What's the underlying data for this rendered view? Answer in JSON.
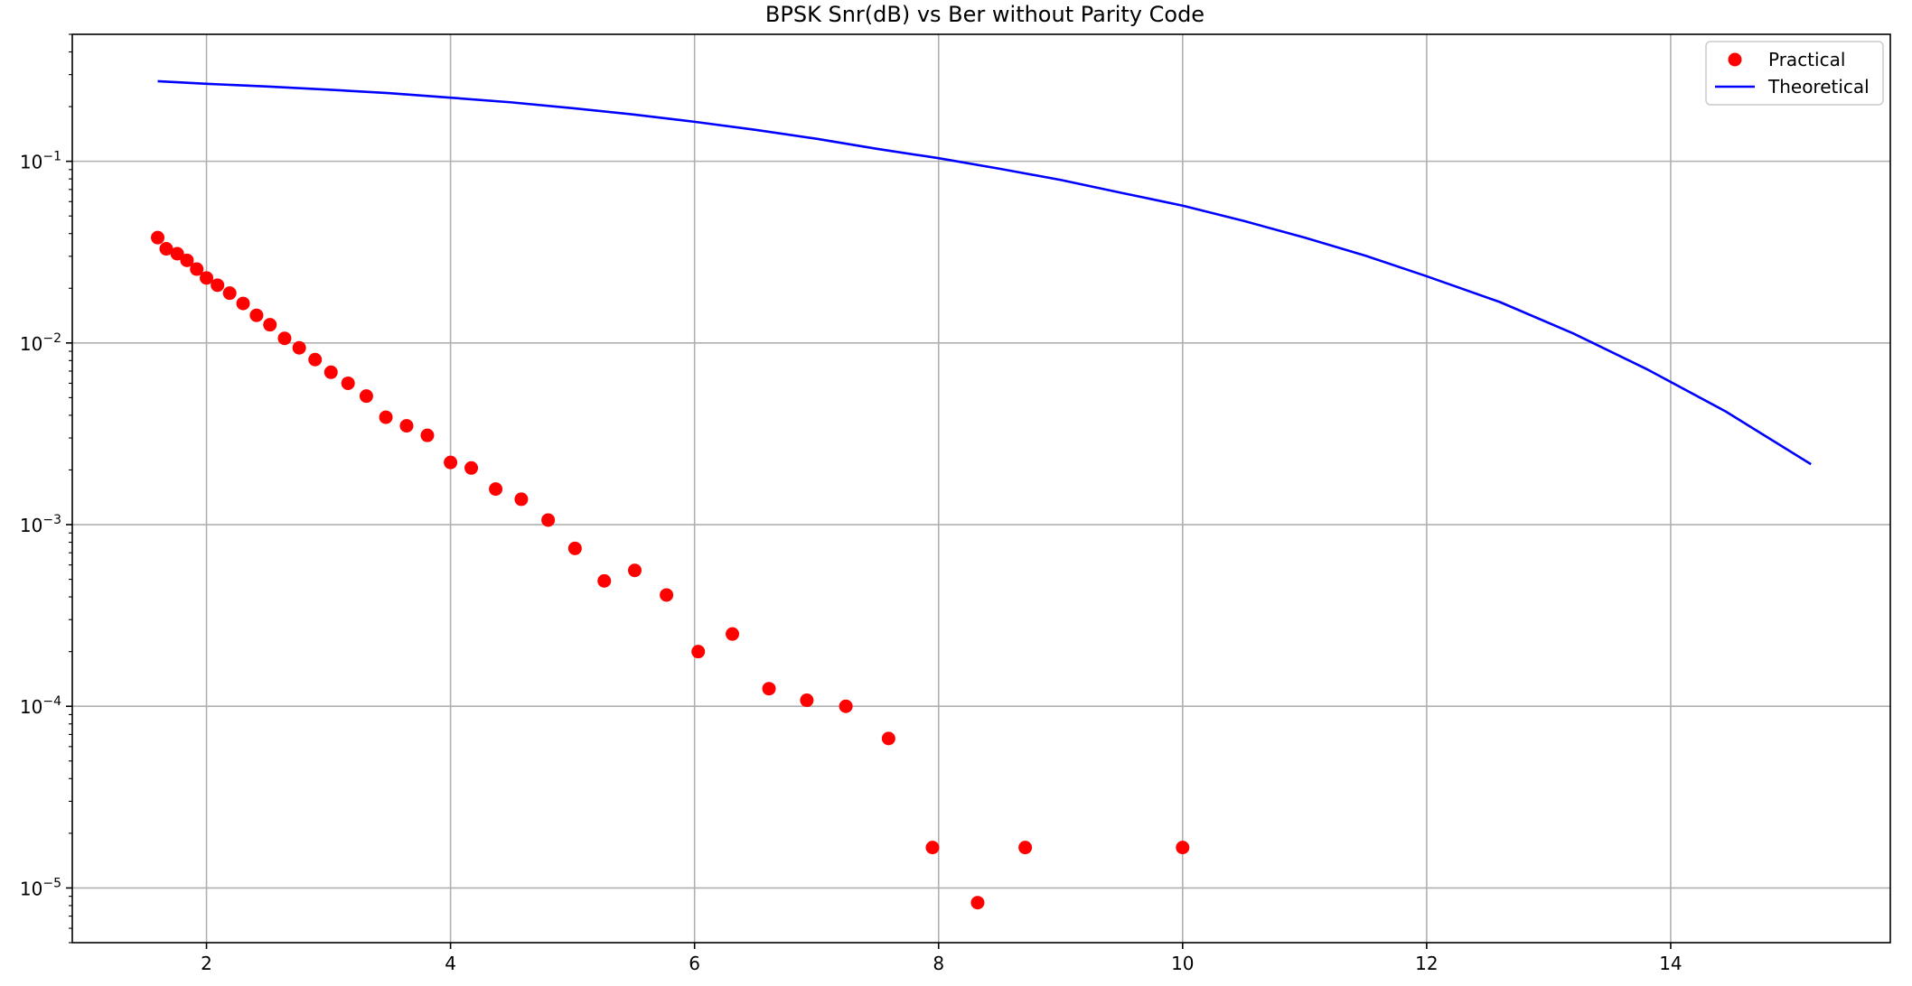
{
  "chart_data": {
    "type": "scatter",
    "title": "BPSK Snr(dB) vs Ber without Parity Code",
    "xlabel": "",
    "ylabel": "",
    "xlim": [
      0.9,
      15.8
    ],
    "ylim": [
      5e-06,
      0.5
    ],
    "yscale": "log",
    "grid": true,
    "legend_position": "top-right",
    "x_ticks": [
      "2",
      "4",
      "6",
      "8",
      "10",
      "12",
      "14"
    ],
    "y_ticks": [
      {
        "value": 1e-05,
        "base": "10",
        "exp": "−5"
      },
      {
        "value": 0.0001,
        "base": "10",
        "exp": "−4"
      },
      {
        "value": 0.001,
        "base": "10",
        "exp": "−3"
      },
      {
        "value": 0.01,
        "base": "10",
        "exp": "−2"
      },
      {
        "value": 0.1,
        "base": "10",
        "exp": "−1"
      }
    ],
    "series": [
      {
        "name": "Practical",
        "kind": "scatter",
        "color": "#ff0000",
        "x": [
          1.6,
          1.67,
          1.76,
          1.84,
          1.92,
          2.0,
          2.09,
          2.19,
          2.3,
          2.41,
          2.52,
          2.64,
          2.76,
          2.89,
          3.02,
          3.16,
          3.31,
          3.47,
          3.64,
          3.81,
          4.0,
          4.17,
          4.37,
          4.58,
          4.8,
          5.02,
          5.26,
          5.51,
          5.77,
          6.03,
          6.31,
          6.61,
          6.92,
          7.24,
          7.59,
          7.95,
          8.32,
          8.71,
          10.0
        ],
        "y": [
          0.038,
          0.033,
          0.031,
          0.0285,
          0.0255,
          0.0228,
          0.0208,
          0.0188,
          0.0165,
          0.0142,
          0.0126,
          0.0106,
          0.0094,
          0.0081,
          0.0069,
          0.006,
          0.0051,
          0.0039,
          0.0035,
          0.0031,
          0.0022,
          0.00205,
          0.00157,
          0.00138,
          0.00106,
          0.00074,
          0.00049,
          0.00056,
          0.00041,
          0.0002,
          0.00025,
          0.000125,
          0.000108,
          0.0001,
          6.65e-05,
          1.67e-05,
          8.3e-06,
          1.67e-05,
          1.67e-05
        ]
      },
      {
        "name": "Theoretical",
        "kind": "line",
        "color": "#0000ff",
        "x": [
          1.6,
          2.0,
          2.5,
          3.0,
          3.5,
          4.0,
          4.5,
          5.0,
          5.5,
          6.0,
          6.5,
          7.0,
          7.5,
          8.0,
          8.5,
          9.0,
          9.5,
          10.0,
          10.5,
          11.0,
          11.5,
          12.0,
          12.6,
          13.2,
          13.8,
          14.45,
          15.15
        ],
        "y": [
          0.276,
          0.267,
          0.258,
          0.248,
          0.237,
          0.224,
          0.211,
          0.196,
          0.181,
          0.165,
          0.149,
          0.133,
          0.117,
          0.104,
          0.091,
          0.079,
          0.067,
          0.057,
          0.047,
          0.038,
          0.0302,
          0.0233,
          0.0168,
          0.0113,
          0.0072,
          0.0042,
          0.00215
        ]
      }
    ]
  }
}
